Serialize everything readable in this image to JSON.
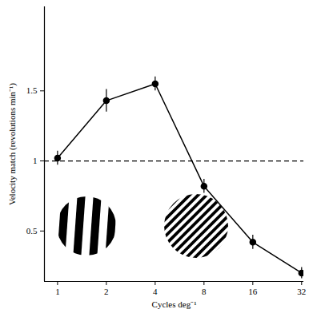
{
  "chart_data": {
    "type": "line",
    "x_label": "Cycles deg⁻¹",
    "y_label": "Velocity match (revolutions min⁻¹)",
    "x": [
      1,
      2,
      4,
      8,
      16,
      32
    ],
    "values": [
      1.02,
      1.43,
      1.55,
      0.82,
      0.42,
      0.2
    ],
    "errors": [
      0.05,
      0.08,
      0.05,
      0.05,
      0.05,
      0.04
    ],
    "color": "#000000",
    "marker": "circle",
    "log": "x",
    "xlim": [
      0.83,
      33
    ],
    "xticks": [
      1,
      2,
      4,
      8,
      16,
      32
    ],
    "ylim": [
      0.14,
      2.1
    ],
    "yticks": [
      0.5,
      1,
      1.5
    ],
    "reference_line": {
      "value": 1,
      "line_style": "dashed"
    },
    "grid": false
  }
}
